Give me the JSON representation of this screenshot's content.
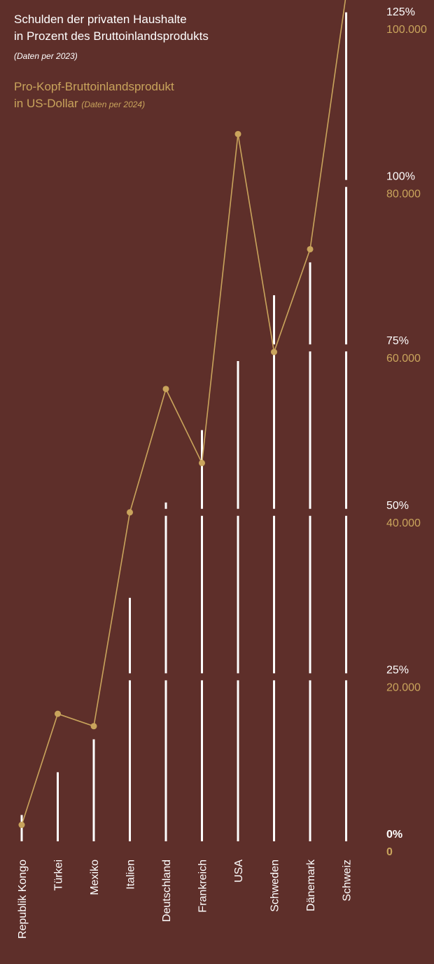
{
  "legend": {
    "debt_title_line1": "Schulden der privaten Haushalte",
    "debt_title_line2": "in Prozent des Bruttoinlandsprodukts",
    "debt_note": "(Daten per 2023)",
    "gdp_title_line1": "Pro-Kopf-Bruttoinlandsprodukt",
    "gdp_title_line2": "in US-Dollar",
    "gdp_note": "(Daten per 2024)"
  },
  "colors": {
    "background": "#5e2f2a",
    "bars": "#ffffff",
    "line": "#c9a45c"
  },
  "chart_data": {
    "type": "bar",
    "categories": [
      "Republik Kongo",
      "Türkei",
      "Mexiko",
      "Italien",
      "Deutschland",
      "Frankreich",
      "USA",
      "Schweden",
      "Dänemark",
      "Schweiz"
    ],
    "series": [
      {
        "name": "Schulden der privaten Haushalte in Prozent des Bruttoinlandsprodukts",
        "type": "bar",
        "axis": "left_percent",
        "values": [
          4,
          10.5,
          15.5,
          37,
          51.5,
          62.5,
          73,
          83,
          88,
          126
        ]
      },
      {
        "name": "Pro-Kopf-Bruttoinlandsprodukt in US-Dollar",
        "type": "line",
        "axis": "right_usd",
        "values": [
          2000,
          15500,
          14000,
          40000,
          55000,
          46000,
          86000,
          59500,
          72000,
          103000
        ]
      }
    ],
    "axes": {
      "percent": {
        "ticks": [
          "0%",
          "25%",
          "50%",
          "75%",
          "100%",
          "125%"
        ],
        "range": [
          0,
          125
        ]
      },
      "usd": {
        "ticks": [
          "0",
          "20.000",
          "40.000",
          "60.000",
          "80.000",
          "100.000"
        ],
        "range": [
          0,
          100000
        ]
      }
    },
    "gridlines": "horizontal gaps through bars at tick levels",
    "legend_position": "top-left"
  }
}
